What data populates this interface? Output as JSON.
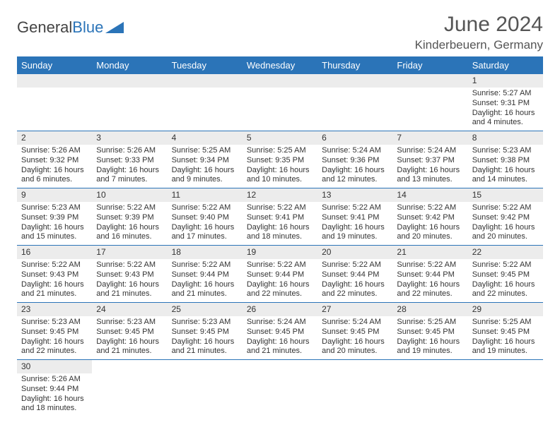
{
  "logo": {
    "text1": "General",
    "text2": "Blue",
    "triangle_color": "#2b74b8"
  },
  "title": "June 2024",
  "location": "Kinderbeuern, Germany",
  "header_bg": "#2b74b8",
  "header_fg": "#ffffff",
  "daynum_bg": "#ececec",
  "row_border": "#2b74b8",
  "day_headers": [
    "Sunday",
    "Monday",
    "Tuesday",
    "Wednesday",
    "Thursday",
    "Friday",
    "Saturday"
  ],
  "weeks": [
    [
      null,
      null,
      null,
      null,
      null,
      null,
      {
        "n": "1",
        "sr": "Sunrise: 5:27 AM",
        "ss": "Sunset: 9:31 PM",
        "dl": "Daylight: 16 hours and 4 minutes."
      }
    ],
    [
      {
        "n": "2",
        "sr": "Sunrise: 5:26 AM",
        "ss": "Sunset: 9:32 PM",
        "dl": "Daylight: 16 hours and 6 minutes."
      },
      {
        "n": "3",
        "sr": "Sunrise: 5:26 AM",
        "ss": "Sunset: 9:33 PM",
        "dl": "Daylight: 16 hours and 7 minutes."
      },
      {
        "n": "4",
        "sr": "Sunrise: 5:25 AM",
        "ss": "Sunset: 9:34 PM",
        "dl": "Daylight: 16 hours and 9 minutes."
      },
      {
        "n": "5",
        "sr": "Sunrise: 5:25 AM",
        "ss": "Sunset: 9:35 PM",
        "dl": "Daylight: 16 hours and 10 minutes."
      },
      {
        "n": "6",
        "sr": "Sunrise: 5:24 AM",
        "ss": "Sunset: 9:36 PM",
        "dl": "Daylight: 16 hours and 12 minutes."
      },
      {
        "n": "7",
        "sr": "Sunrise: 5:24 AM",
        "ss": "Sunset: 9:37 PM",
        "dl": "Daylight: 16 hours and 13 minutes."
      },
      {
        "n": "8",
        "sr": "Sunrise: 5:23 AM",
        "ss": "Sunset: 9:38 PM",
        "dl": "Daylight: 16 hours and 14 minutes."
      }
    ],
    [
      {
        "n": "9",
        "sr": "Sunrise: 5:23 AM",
        "ss": "Sunset: 9:39 PM",
        "dl": "Daylight: 16 hours and 15 minutes."
      },
      {
        "n": "10",
        "sr": "Sunrise: 5:22 AM",
        "ss": "Sunset: 9:39 PM",
        "dl": "Daylight: 16 hours and 16 minutes."
      },
      {
        "n": "11",
        "sr": "Sunrise: 5:22 AM",
        "ss": "Sunset: 9:40 PM",
        "dl": "Daylight: 16 hours and 17 minutes."
      },
      {
        "n": "12",
        "sr": "Sunrise: 5:22 AM",
        "ss": "Sunset: 9:41 PM",
        "dl": "Daylight: 16 hours and 18 minutes."
      },
      {
        "n": "13",
        "sr": "Sunrise: 5:22 AM",
        "ss": "Sunset: 9:41 PM",
        "dl": "Daylight: 16 hours and 19 minutes."
      },
      {
        "n": "14",
        "sr": "Sunrise: 5:22 AM",
        "ss": "Sunset: 9:42 PM",
        "dl": "Daylight: 16 hours and 20 minutes."
      },
      {
        "n": "15",
        "sr": "Sunrise: 5:22 AM",
        "ss": "Sunset: 9:42 PM",
        "dl": "Daylight: 16 hours and 20 minutes."
      }
    ],
    [
      {
        "n": "16",
        "sr": "Sunrise: 5:22 AM",
        "ss": "Sunset: 9:43 PM",
        "dl": "Daylight: 16 hours and 21 minutes."
      },
      {
        "n": "17",
        "sr": "Sunrise: 5:22 AM",
        "ss": "Sunset: 9:43 PM",
        "dl": "Daylight: 16 hours and 21 minutes."
      },
      {
        "n": "18",
        "sr": "Sunrise: 5:22 AM",
        "ss": "Sunset: 9:44 PM",
        "dl": "Daylight: 16 hours and 21 minutes."
      },
      {
        "n": "19",
        "sr": "Sunrise: 5:22 AM",
        "ss": "Sunset: 9:44 PM",
        "dl": "Daylight: 16 hours and 22 minutes."
      },
      {
        "n": "20",
        "sr": "Sunrise: 5:22 AM",
        "ss": "Sunset: 9:44 PM",
        "dl": "Daylight: 16 hours and 22 minutes."
      },
      {
        "n": "21",
        "sr": "Sunrise: 5:22 AM",
        "ss": "Sunset: 9:44 PM",
        "dl": "Daylight: 16 hours and 22 minutes."
      },
      {
        "n": "22",
        "sr": "Sunrise: 5:22 AM",
        "ss": "Sunset: 9:45 PM",
        "dl": "Daylight: 16 hours and 22 minutes."
      }
    ],
    [
      {
        "n": "23",
        "sr": "Sunrise: 5:23 AM",
        "ss": "Sunset: 9:45 PM",
        "dl": "Daylight: 16 hours and 22 minutes."
      },
      {
        "n": "24",
        "sr": "Sunrise: 5:23 AM",
        "ss": "Sunset: 9:45 PM",
        "dl": "Daylight: 16 hours and 21 minutes."
      },
      {
        "n": "25",
        "sr": "Sunrise: 5:23 AM",
        "ss": "Sunset: 9:45 PM",
        "dl": "Daylight: 16 hours and 21 minutes."
      },
      {
        "n": "26",
        "sr": "Sunrise: 5:24 AM",
        "ss": "Sunset: 9:45 PM",
        "dl": "Daylight: 16 hours and 21 minutes."
      },
      {
        "n": "27",
        "sr": "Sunrise: 5:24 AM",
        "ss": "Sunset: 9:45 PM",
        "dl": "Daylight: 16 hours and 20 minutes."
      },
      {
        "n": "28",
        "sr": "Sunrise: 5:25 AM",
        "ss": "Sunset: 9:45 PM",
        "dl": "Daylight: 16 hours and 19 minutes."
      },
      {
        "n": "29",
        "sr": "Sunrise: 5:25 AM",
        "ss": "Sunset: 9:45 PM",
        "dl": "Daylight: 16 hours and 19 minutes."
      }
    ],
    [
      {
        "n": "30",
        "sr": "Sunrise: 5:26 AM",
        "ss": "Sunset: 9:44 PM",
        "dl": "Daylight: 16 hours and 18 minutes."
      },
      null,
      null,
      null,
      null,
      null,
      null
    ]
  ]
}
